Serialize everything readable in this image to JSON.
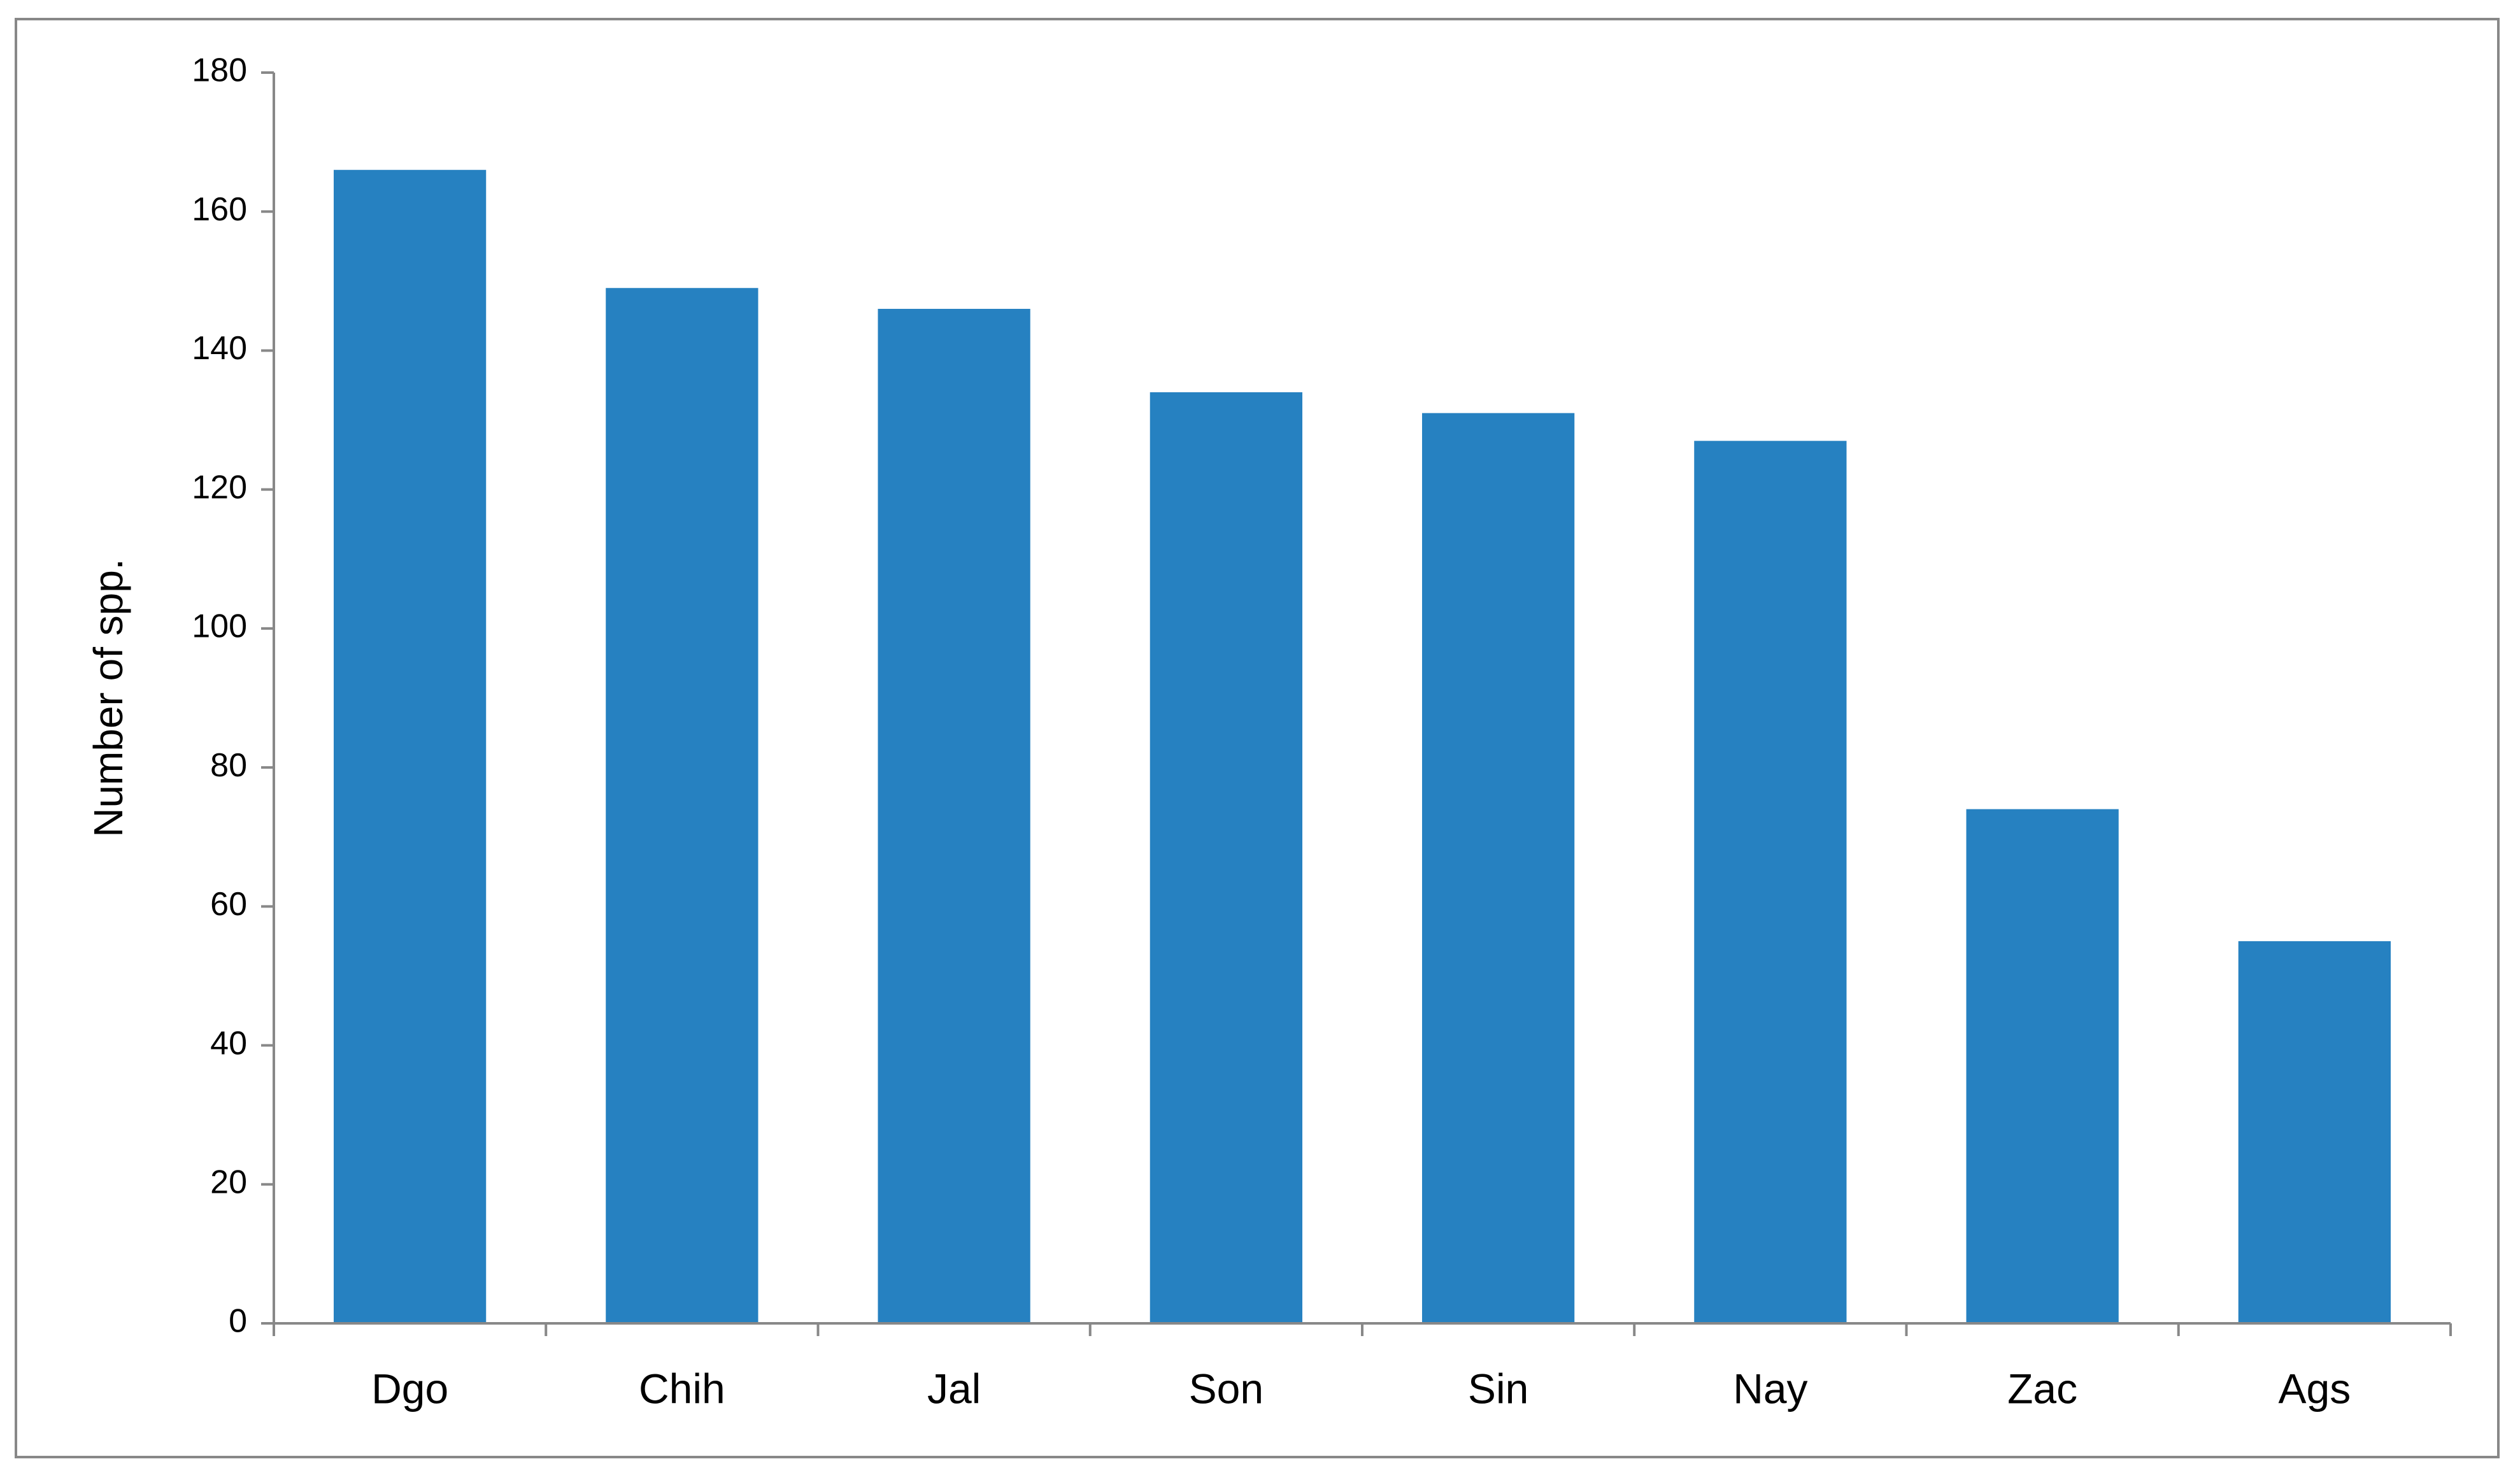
{
  "chart_data": {
    "type": "bar",
    "y_label": "Number of spp.",
    "categories": [
      "Dgo",
      "Chih",
      "Jal",
      "Son",
      "Sin",
      "Nay",
      "Zac",
      "Ags"
    ],
    "values": [
      166,
      149,
      146,
      134,
      131,
      127,
      74,
      55
    ],
    "color": "#2681c1",
    "ylim": [
      0,
      180
    ],
    "yticks": [
      0,
      20,
      40,
      60,
      80,
      100,
      120,
      140,
      160,
      180
    ],
    "grid": false
  }
}
